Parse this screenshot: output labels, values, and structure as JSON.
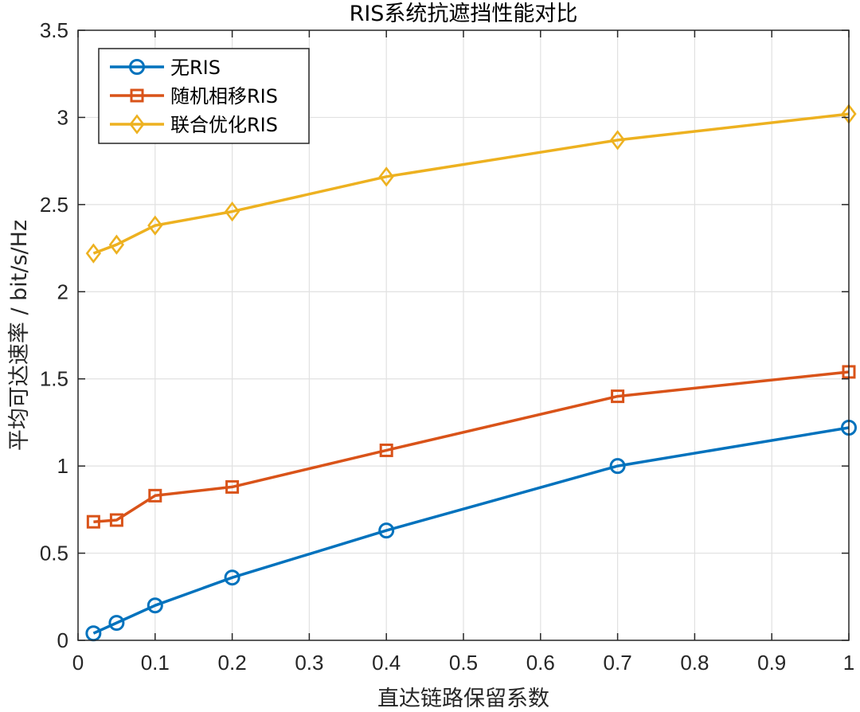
{
  "chart_data": {
    "type": "line",
    "title": "RIS系统抗遮挡性能对比",
    "xlabel": "直达链路保留系数",
    "ylabel": "平均可达速率 / bit/s/Hz",
    "xlim": [
      0,
      1
    ],
    "ylim": [
      0,
      3.5
    ],
    "xticks": [
      0,
      0.1,
      0.2,
      0.3,
      0.4,
      0.5,
      0.6,
      0.7,
      0.8,
      0.9,
      1
    ],
    "xtick_labels": [
      "0",
      "0.1",
      "0.2",
      "0.3",
      "0.4",
      "0.5",
      "0.6",
      "0.7",
      "0.8",
      "0.9",
      "1"
    ],
    "yticks": [
      0,
      0.5,
      1,
      1.5,
      2,
      2.5,
      3,
      3.5
    ],
    "ytick_labels": [
      "0",
      "0.5",
      "1",
      "1.5",
      "2",
      "2.5",
      "3",
      "3.5"
    ],
    "grid": true,
    "legend_position": "top-left",
    "x": [
      0.02,
      0.05,
      0.1,
      0.2,
      0.4,
      0.7,
      1.0
    ],
    "series": [
      {
        "name": "无RIS",
        "color": "#0072BD",
        "marker": "circle",
        "values": [
          0.04,
          0.1,
          0.2,
          0.36,
          0.63,
          1.0,
          1.22
        ]
      },
      {
        "name": "随机相移RIS",
        "color": "#D95319",
        "marker": "square",
        "values": [
          0.68,
          0.69,
          0.83,
          0.88,
          1.09,
          1.4,
          1.54
        ]
      },
      {
        "name": "联合优化RIS",
        "color": "#EDB120",
        "marker": "diamond",
        "values": [
          2.22,
          2.27,
          2.38,
          2.46,
          2.66,
          2.87,
          3.02
        ]
      }
    ]
  }
}
